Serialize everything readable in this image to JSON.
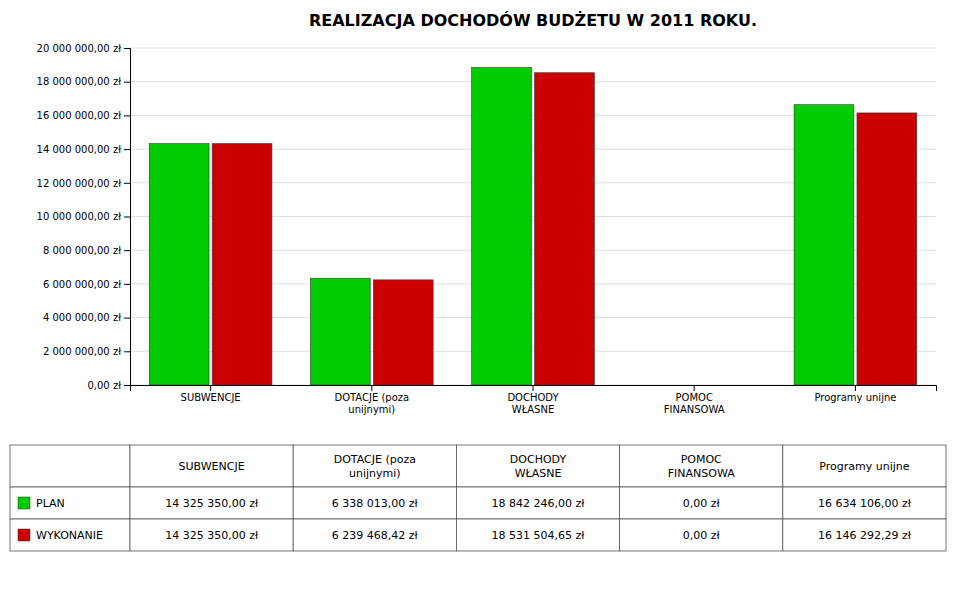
{
  "chart_data": {
    "type": "bar",
    "title": "REALIZACJA DOCHODÓW BUDŻETU W 2011 ROKU.",
    "categories": [
      "SUBWENCJE",
      "DOTACJE (poza\nunijnymi)",
      "DOCHODY\nWŁASNE",
      "POMOC\nFINANSOWA",
      "Programy unijne"
    ],
    "series": [
      {
        "name": "PLAN",
        "color": "#00cc00",
        "values": [
          14325350,
          6338013,
          18842246,
          0,
          16634106
        ],
        "value_labels": [
          "14 325 350,00 zł",
          "6 338 013,00 zł",
          "18 842 246,00 zł",
          "0,00 zł",
          "16 634 106,00 zł"
        ]
      },
      {
        "name": "WYKONANIE",
        "color": "#cc0000",
        "values": [
          14325350,
          6239468.42,
          18531504.65,
          0,
          16146292.29
        ],
        "value_labels": [
          "14 325 350,00 zł",
          "6 239 468,42 zł",
          "18 531 504,65 zł",
          "0,00 zł",
          "16 146 292,29 zł"
        ]
      }
    ],
    "ylim": [
      0,
      20000000
    ],
    "yticks": [
      {
        "value": 0,
        "label": "0,00 zł"
      },
      {
        "value": 2000000,
        "label": "2 000 000,00 zł"
      },
      {
        "value": 4000000,
        "label": "4 000 000,00 zł"
      },
      {
        "value": 6000000,
        "label": "6 000 000,00 zł"
      },
      {
        "value": 8000000,
        "label": "8 000 000,00 zł"
      },
      {
        "value": 10000000,
        "label": "10 000 000,00 zł"
      },
      {
        "value": 12000000,
        "label": "12 000 000,00 zł"
      },
      {
        "value": 14000000,
        "label": "14 000 000,00 zł"
      },
      {
        "value": 16000000,
        "label": "16 000 000,00 zł"
      },
      {
        "value": 18000000,
        "label": "18 000 000,00 zł"
      },
      {
        "value": 20000000,
        "label": "20 000 000,00 zł"
      }
    ],
    "grid": true,
    "legend": "bottom"
  }
}
